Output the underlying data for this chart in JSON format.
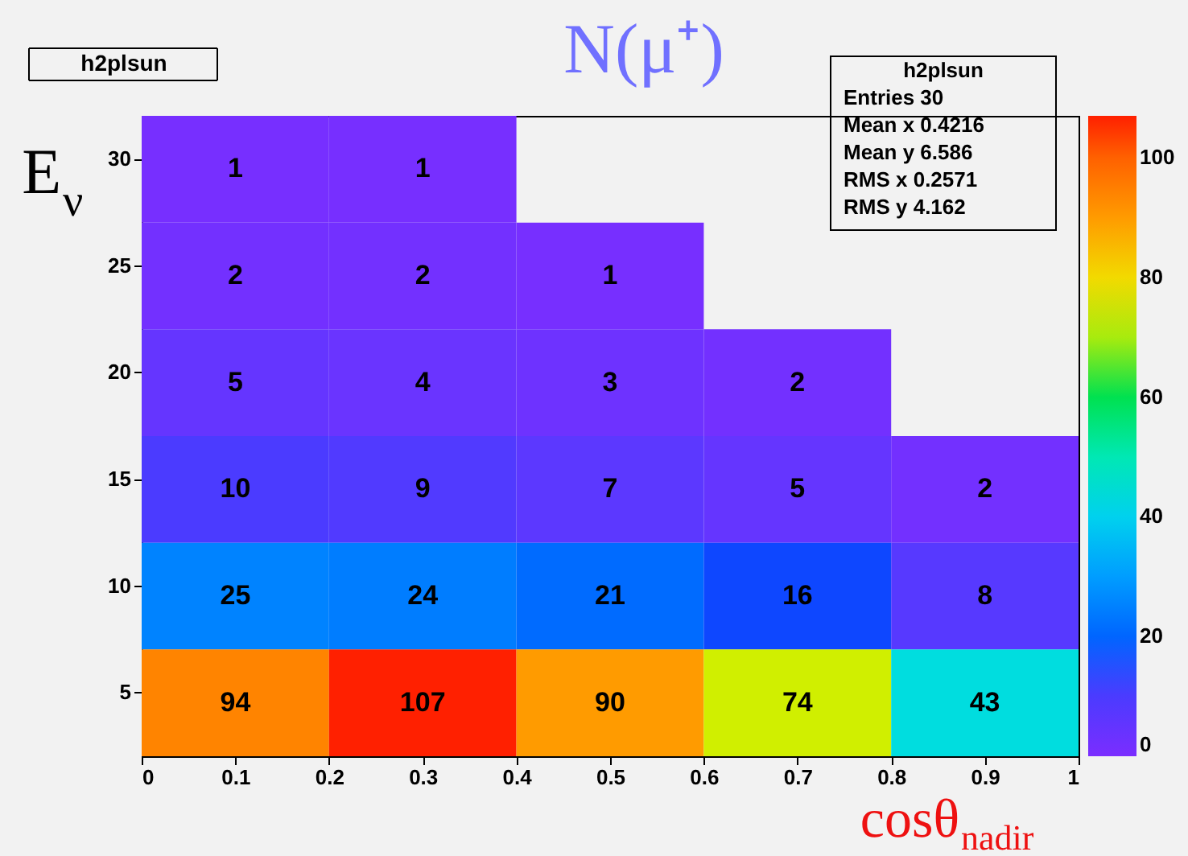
{
  "chart_data": {
    "type": "heatmap",
    "title": "h2plsun",
    "subtitle": "N(μ⁺)",
    "xlabel": "cosθ$_{nadir}$",
    "ylabel": "E$_{ν}$",
    "cells": [
      [
        1,
        1,
        null,
        null,
        null
      ],
      [
        2,
        2,
        1,
        null,
        null
      ],
      [
        5,
        4,
        3,
        2,
        null
      ],
      [
        10,
        9,
        7,
        5,
        2
      ],
      [
        25,
        24,
        21,
        16,
        8
      ],
      [
        94,
        107,
        90,
        74,
        43
      ]
    ],
    "data_labels": true,
    "xlim": [
      0,
      1
    ],
    "xticks": [
      0,
      0.1,
      0.2,
      0.3,
      0.4,
      0.5,
      0.6,
      0.7,
      0.8,
      0.9,
      1
    ],
    "ylim": [
      2,
      32
    ],
    "yticks": [
      5,
      10,
      15,
      20,
      25,
      30
    ],
    "clim": [
      0,
      107
    ],
    "cticks": [
      0,
      20,
      40,
      60,
      80,
      100
    ],
    "grid": false,
    "annotations": [
      "h2plsun",
      "Entries 30",
      "Mean x 0.4216",
      "Mean y 6.586",
      "RMS x 0.2571",
      "RMS y 4.162"
    ]
  }
}
